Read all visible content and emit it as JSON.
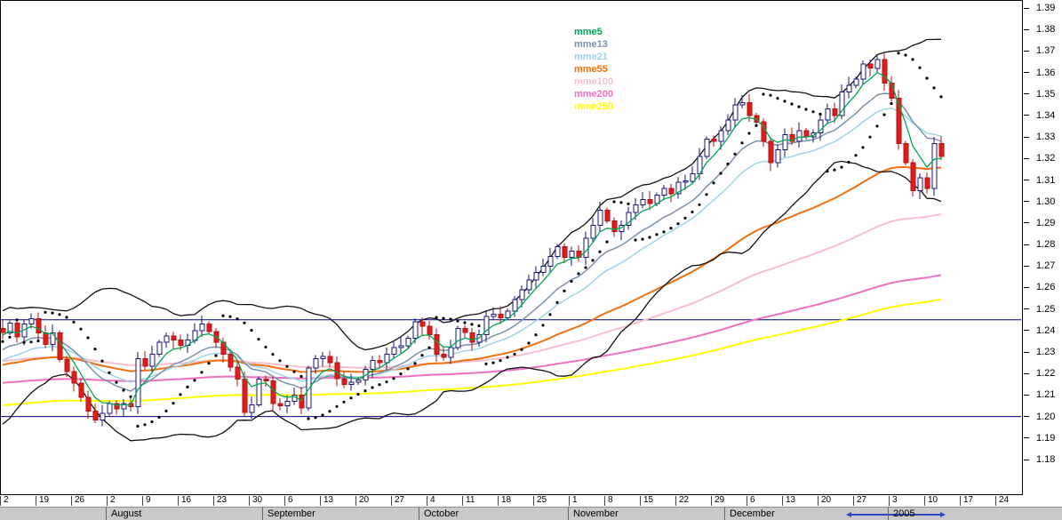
{
  "chart_data": {
    "type": "candlestick",
    "title": "",
    "legend": {
      "items": [
        {
          "label": "mme5",
          "color": "#00a650"
        },
        {
          "label": "mme13",
          "color": "#7a93ad"
        },
        {
          "label": "mme21",
          "color": "#9fd4e8"
        },
        {
          "label": "mme55",
          "color": "#f07010"
        },
        {
          "label": "mme100",
          "color": "#f8c0cc"
        },
        {
          "label": "mme200",
          "color": "#ef6fc1"
        },
        {
          "label": "mme250",
          "color": "#ffff00"
        }
      ]
    },
    "y_axis": {
      "min": 1.18,
      "max": 1.39,
      "step": 0.01,
      "labels": [
        "1.39",
        "1.38",
        "1.37",
        "1.36",
        "1.35",
        "1.34",
        "1.33",
        "1.32",
        "1.31",
        "1.30",
        "1.29",
        "1.28",
        "1.27",
        "1.26",
        "1.25",
        "1.24",
        "1.23",
        "1.22",
        "1.21",
        "1.20",
        "1.19",
        "1.18"
      ]
    },
    "x_axis": {
      "tick_labels": [
        "2",
        "19",
        "26",
        "2",
        "9",
        "16",
        "23",
        "30",
        "6",
        "13",
        "20",
        "27",
        "4",
        "11",
        "18",
        "25",
        "1",
        "8",
        "15",
        "22",
        "29",
        "6",
        "13",
        "20",
        "27",
        "3",
        "10",
        "17",
        "24"
      ],
      "days_per_tick": 5,
      "months": [
        {
          "label": "August",
          "index": 15
        },
        {
          "label": "September",
          "index": 37
        },
        {
          "label": "October",
          "index": 59
        },
        {
          "label": "November",
          "index": 80
        },
        {
          "label": "December",
          "index": 102
        },
        {
          "label": "2005",
          "index": 125
        }
      ]
    },
    "horizontal_lines": {
      "color": "#000080",
      "values": [
        1.245,
        1.2
      ]
    },
    "candles": {
      "up_fill": "#ffffff",
      "up_stroke": "#16167a",
      "down_fill": "#e41b17",
      "down_stroke": "#b01010",
      "first_open": 1.206,
      "warmup_closes": [
        1.2085,
        1.201,
        1.199,
        1.2025,
        1.206,
        1.2135,
        1.218,
        1.216,
        1.222,
        1.219,
        1.226,
        1.23,
        1.227,
        1.221,
        1.228,
        1.232,
        1.236,
        1.242,
        1.238,
        1.241
      ],
      "closes": [
        1.239,
        1.2435,
        1.237,
        1.243,
        1.2455,
        1.239,
        1.2335,
        1.239,
        1.2265,
        1.221,
        1.2155,
        1.209,
        1.2025,
        1.1985,
        1.2015,
        1.206,
        1.2035,
        1.206,
        1.2045,
        1.227,
        1.2235,
        1.229,
        1.2345,
        1.2375,
        1.2355,
        1.233,
        1.2355,
        1.24,
        1.243,
        1.2395,
        1.2345,
        1.229,
        1.223,
        1.2175,
        1.202,
        1.2055,
        1.2175,
        1.2165,
        1.206,
        1.205,
        1.207,
        1.21,
        1.204,
        1.2225,
        1.227,
        1.228,
        1.225,
        1.2175,
        1.215,
        1.216,
        1.217,
        1.222,
        1.226,
        1.225,
        1.229,
        1.232,
        1.233,
        1.2365,
        1.244,
        1.242,
        1.238,
        1.229,
        1.2275,
        1.232,
        1.241,
        1.239,
        1.2345,
        1.238,
        1.2465,
        1.2475,
        1.246,
        1.249,
        1.2545,
        1.259,
        1.2635,
        1.267,
        1.27,
        1.2745,
        1.279,
        1.274,
        1.277,
        1.274,
        1.283,
        1.289,
        1.296,
        1.291,
        1.286,
        1.289,
        1.295,
        1.2985,
        1.301,
        1.299,
        1.303,
        1.306,
        1.3035,
        1.309,
        1.3095,
        1.313,
        1.321,
        1.329,
        1.328,
        1.333,
        1.338,
        1.345,
        1.346,
        1.34,
        1.337,
        1.328,
        1.318,
        1.324,
        1.331,
        1.328,
        1.333,
        1.33,
        1.332,
        1.338,
        1.343,
        1.34,
        1.351,
        1.354,
        1.357,
        1.364,
        1.362,
        1.366,
        1.355,
        1.348,
        1.327,
        1.318,
        1.305,
        1.311,
        1.306,
        1.327,
        1.321
      ]
    },
    "indicators": {
      "ema_seeds": {
        "55": 1.223,
        "100": 1.227,
        "200": 1.214,
        "250": 1.202
      },
      "bollinger": {
        "period": 20,
        "mult": 2,
        "color": "#111111"
      },
      "parabolic_sar": {
        "step": 0.02,
        "max": 0.2,
        "color": "#000000"
      }
    },
    "scrollbar_color": "#2b48c0"
  }
}
